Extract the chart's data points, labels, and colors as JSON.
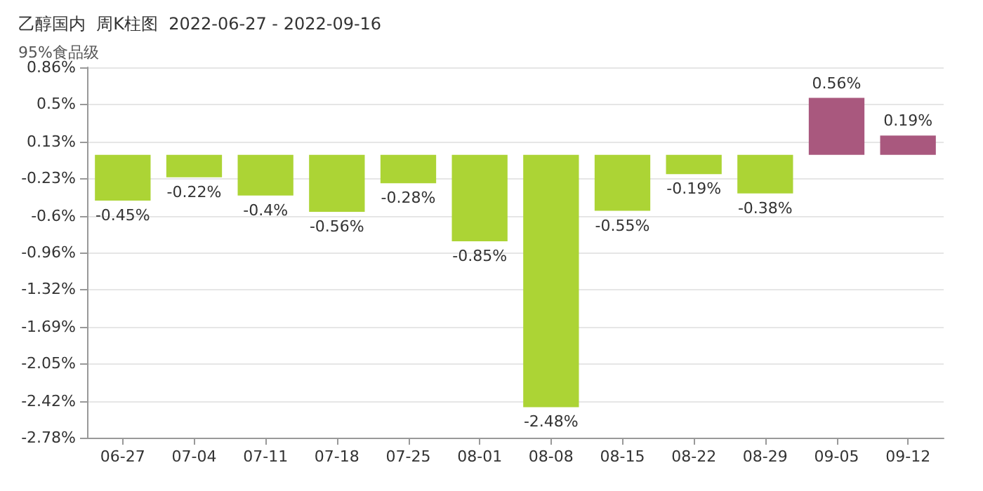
{
  "chart_data": {
    "type": "bar",
    "title": "乙醇国内  周K柱图  2022-06-27 - 2022-09-16",
    "subtitle": "95%食品级",
    "categories": [
      "06-27",
      "07-04",
      "07-11",
      "07-18",
      "07-25",
      "08-01",
      "08-08",
      "08-15",
      "08-22",
      "08-29",
      "09-05",
      "09-12"
    ],
    "values": [
      -0.45,
      -0.22,
      -0.4,
      -0.56,
      -0.28,
      -0.85,
      -2.48,
      -0.55,
      -0.19,
      -0.38,
      0.56,
      0.19
    ],
    "value_labels": [
      "-0.45%",
      "-0.22%",
      "-0.4%",
      "-0.56%",
      "-0.28%",
      "-0.85%",
      "-2.48%",
      "-0.55%",
      "-0.19%",
      "-0.38%",
      "0.56%",
      "0.19%"
    ],
    "colors": [
      "#acd435",
      "#acd435",
      "#acd435",
      "#acd435",
      "#acd435",
      "#acd435",
      "#acd435",
      "#acd435",
      "#acd435",
      "#acd435",
      "#a9587e",
      "#a9587e"
    ],
    "ylim": [
      -2.78,
      0.86
    ],
    "yticks": [
      {
        "value": 0.86,
        "label": "0.86%"
      },
      {
        "value": 0.5,
        "label": "0.5%"
      },
      {
        "value": 0.13,
        "label": "0.13%"
      },
      {
        "value": -0.23,
        "label": "-0.23%"
      },
      {
        "value": -0.6,
        "label": "-0.6%"
      },
      {
        "value": -0.96,
        "label": "-0.96%"
      },
      {
        "value": -1.32,
        "label": "-1.32%"
      },
      {
        "value": -1.69,
        "label": "-1.69%"
      },
      {
        "value": -2.05,
        "label": "-2.05%"
      },
      {
        "value": -2.42,
        "label": "-2.42%"
      },
      {
        "value": -2.78,
        "label": "-2.78%"
      }
    ],
    "grid": "y"
  }
}
